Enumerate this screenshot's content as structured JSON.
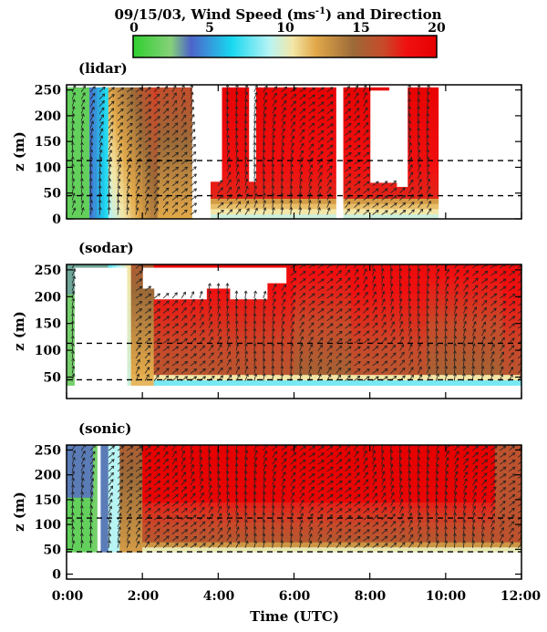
{
  "title_main": "09/15/03, Wind Speed (ms",
  "title_sup": "-1",
  "title_tail": ") and Direction",
  "colorbar": {
    "ticks": [
      "0",
      "5",
      "10",
      "15",
      "20"
    ],
    "range": [
      0,
      20
    ],
    "stops": [
      {
        "v": 0,
        "c": "#2fd02f"
      },
      {
        "v": 2.5,
        "c": "#86d07a"
      },
      {
        "v": 3.8,
        "c": "#4e63c9"
      },
      {
        "v": 6.5,
        "c": "#18d8f0"
      },
      {
        "v": 9,
        "c": "#b8f4f4"
      },
      {
        "v": 10.5,
        "c": "#f3e7a8"
      },
      {
        "v": 12,
        "c": "#e2a94a"
      },
      {
        "v": 14.5,
        "c": "#9c6a38"
      },
      {
        "v": 16.5,
        "c": "#c84a2a"
      },
      {
        "v": 18,
        "c": "#f01010"
      },
      {
        "v": 20,
        "c": "#e60000"
      }
    ]
  },
  "xaxis": {
    "label": "Time (UTC)",
    "ticks": [
      "0:00",
      "2:00",
      "4:00",
      "6:00",
      "8:00",
      "10:00",
      "12:00"
    ],
    "range": [
      0,
      12
    ]
  },
  "chart_data": [
    {
      "type": "heatmap",
      "label": "(lidar)",
      "ylabel": "z (m)",
      "yticks": [
        "0",
        "50",
        "100",
        "150",
        "200",
        "250"
      ],
      "ylim": [
        0,
        260
      ],
      "xlim": [
        0,
        12
      ],
      "dashed_lines_z": [
        113,
        45
      ],
      "data_start_z": 0,
      "gaps": [
        [
          3.3,
          3.85
        ],
        [
          7.05,
          7.3
        ],
        [
          9.75,
          12
        ]
      ],
      "tops": [
        [
          0,
          3.3,
          255
        ],
        [
          3.85,
          4.15,
          72
        ],
        [
          4.15,
          4.75,
          255
        ],
        [
          4.75,
          4.95,
          72
        ],
        [
          4.95,
          7.05,
          255
        ],
        [
          7.3,
          8.5,
          255
        ],
        [
          8.5,
          8.7,
          72
        ],
        [
          8.7,
          9.0,
          62
        ],
        [
          9.0,
          9.75,
          255
        ]
      ],
      "white_patches": [
        [
          8.0,
          8.7,
          72,
          255
        ]
      ],
      "notes": "wind speed (m/s) shaded by height and time, with wind-direction arrows"
    },
    {
      "type": "heatmap",
      "label": "(sodar)",
      "ylabel": "z (m)",
      "yticks": [
        "50",
        "100",
        "150",
        "200",
        "250"
      ],
      "ylim": [
        10,
        260
      ],
      "xlim": [
        0,
        12
      ],
      "dashed_lines_z": [
        113,
        45
      ],
      "data_start_z": 35,
      "white_patches": [
        [
          2.0,
          2.3,
          220,
          260
        ],
        [
          2.3,
          3.7,
          200,
          260
        ],
        [
          3.7,
          4.3,
          215,
          260
        ],
        [
          4.3,
          5.3,
          200,
          260
        ],
        [
          5.3,
          5.8,
          225,
          260
        ],
        [
          0.2,
          1.6,
          30,
          260
        ]
      ],
      "notes": "wind speed (m/s) shaded by height and time, with wind-direction arrows"
    },
    {
      "type": "heatmap",
      "label": "(sonic)",
      "ylabel": "z (m)",
      "yticks": [
        "0",
        "50",
        "100",
        "150",
        "200",
        "250"
      ],
      "ylim": [
        -10,
        260
      ],
      "xlim": [
        0,
        12
      ],
      "dashed_lines_z": [
        113,
        45
      ],
      "data_start_z": 45,
      "gaps": [
        [
          0.8,
          0.9
        ]
      ],
      "notes": "wind speed (m/s) shaded by height and time, with wind-direction arrows"
    }
  ]
}
